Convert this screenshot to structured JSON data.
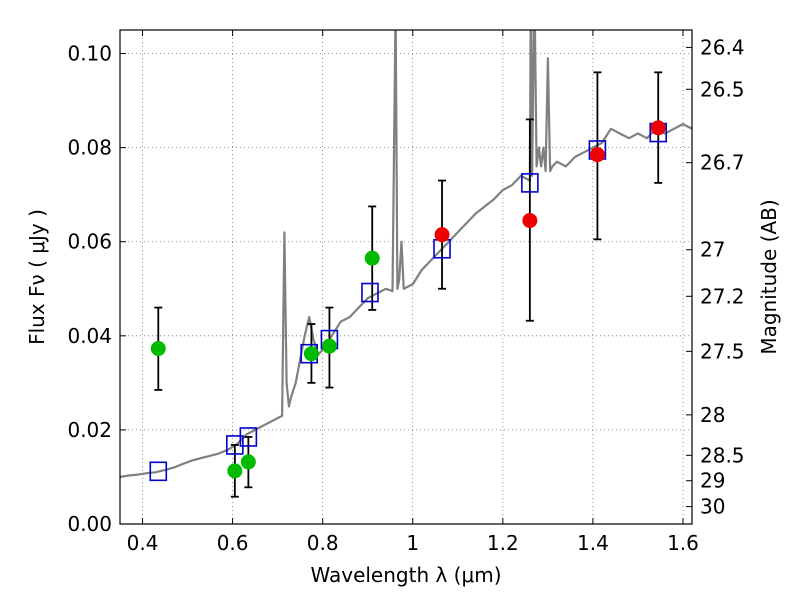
{
  "chart_data": {
    "type": "scatter",
    "title": "",
    "xlabel": "Wavelength  λ (μm)",
    "ylabel": "Flux  Fν  ( μJy )",
    "ylabel_right": "Magnitude (AB)",
    "xlim": [
      0.35,
      1.62
    ],
    "ylim": [
      0.0,
      0.105
    ],
    "grid": true,
    "x_ticks": [
      0.4,
      0.6,
      0.8,
      1.0,
      1.2,
      1.4,
      1.6
    ],
    "x_tick_labels": [
      "0.4",
      "0.6",
      "0.8",
      "1",
      "1.2",
      "1.4",
      "1.6"
    ],
    "y_ticks": [
      0.0,
      0.02,
      0.04,
      0.06,
      0.08,
      0.1
    ],
    "y_tick_labels": [
      "0.00",
      "0.02",
      "0.04",
      "0.06",
      "0.08",
      "0.10"
    ],
    "right_ticks": [
      {
        "label": "26.4",
        "flux": 0.1013
      },
      {
        "label": "26.5",
        "flux": 0.0924
      },
      {
        "label": "26.7",
        "flux": 0.0768
      },
      {
        "label": "27",
        "flux": 0.0583
      },
      {
        "label": "27.2",
        "flux": 0.0484
      },
      {
        "label": "27.5",
        "flux": 0.0367
      },
      {
        "label": "28",
        "flux": 0.0232
      },
      {
        "label": "28.5",
        "flux": 0.0146
      },
      {
        "label": "29",
        "flux": 0.0092
      },
      {
        "label": "30",
        "flux": 0.0037
      }
    ],
    "series": [
      {
        "style": "line",
        "color": "#808080",
        "x": [
          0.35,
          0.37,
          0.39,
          0.41,
          0.43,
          0.45,
          0.47,
          0.49,
          0.51,
          0.53,
          0.55,
          0.57,
          0.59,
          0.61,
          0.63,
          0.65,
          0.67,
          0.69,
          0.7,
          0.71,
          0.715,
          0.72,
          0.725,
          0.73,
          0.74,
          0.75,
          0.76,
          0.77,
          0.78,
          0.79,
          0.8,
          0.82,
          0.84,
          0.86,
          0.88,
          0.9,
          0.92,
          0.94,
          0.955,
          0.962,
          0.966,
          0.97,
          0.975,
          0.98,
          1.0,
          1.02,
          1.04,
          1.06,
          1.08,
          1.1,
          1.12,
          1.14,
          1.16,
          1.18,
          1.2,
          1.22,
          1.24,
          1.26,
          1.262,
          1.265,
          1.27,
          1.275,
          1.28,
          1.285,
          1.29,
          1.295,
          1.3,
          1.305,
          1.31,
          1.32,
          1.34,
          1.36,
          1.38,
          1.4,
          1.42,
          1.44,
          1.46,
          1.48,
          1.5,
          1.52,
          1.54,
          1.56,
          1.58,
          1.6,
          1.62
        ],
        "y": [
          0.01,
          0.0103,
          0.0105,
          0.0108,
          0.011,
          0.0115,
          0.012,
          0.0128,
          0.0135,
          0.014,
          0.0145,
          0.015,
          0.0158,
          0.017,
          0.019,
          0.02,
          0.021,
          0.022,
          0.0225,
          0.023,
          0.062,
          0.03,
          0.025,
          0.027,
          0.03,
          0.035,
          0.04,
          0.044,
          0.039,
          0.036,
          0.037,
          0.04,
          0.043,
          0.044,
          0.046,
          0.048,
          0.049,
          0.05,
          0.0495,
          0.11,
          0.05,
          0.052,
          0.06,
          0.05,
          0.051,
          0.054,
          0.056,
          0.058,
          0.06,
          0.062,
          0.064,
          0.066,
          0.0675,
          0.069,
          0.071,
          0.072,
          0.074,
          0.073,
          0.115,
          0.074,
          0.115,
          0.076,
          0.08,
          0.076,
          0.08,
          0.075,
          0.099,
          0.075,
          0.076,
          0.077,
          0.076,
          0.078,
          0.079,
          0.08,
          0.081,
          0.084,
          0.083,
          0.082,
          0.083,
          0.082,
          0.084,
          0.083,
          0.084,
          0.085,
          0.084
        ]
      },
      {
        "style": "open-square",
        "color": "#0000cc",
        "x": [
          0.435,
          0.605,
          0.635,
          0.77,
          0.815,
          0.905,
          1.065,
          1.26,
          1.41,
          1.545
        ],
        "y": [
          0.0112,
          0.0168,
          0.0185,
          0.0362,
          0.0392,
          0.0492,
          0.0585,
          0.0725,
          0.0795,
          0.0832
        ]
      },
      {
        "style": "filled-circle",
        "color": "#00bb00",
        "x": [
          0.435,
          0.605,
          0.635,
          0.775,
          0.815,
          0.91
        ],
        "y": [
          0.0373,
          0.0113,
          0.0132,
          0.0362,
          0.0378,
          0.0565
        ],
        "yerr_low": [
          0.0285,
          0.0058,
          0.0078,
          0.03,
          0.029,
          0.0455
        ],
        "yerr_high": [
          0.046,
          0.0168,
          0.0185,
          0.0425,
          0.046,
          0.0675
        ]
      },
      {
        "style": "filled-circle",
        "color": "#ee0000",
        "x": [
          1.065,
          1.26,
          1.41,
          1.545
        ],
        "y": [
          0.0615,
          0.0645,
          0.0785,
          0.0842
        ],
        "yerr_low": [
          0.05,
          0.0432,
          0.0605,
          0.0725
        ],
        "yerr_high": [
          0.073,
          0.086,
          0.096,
          0.096
        ]
      }
    ]
  }
}
